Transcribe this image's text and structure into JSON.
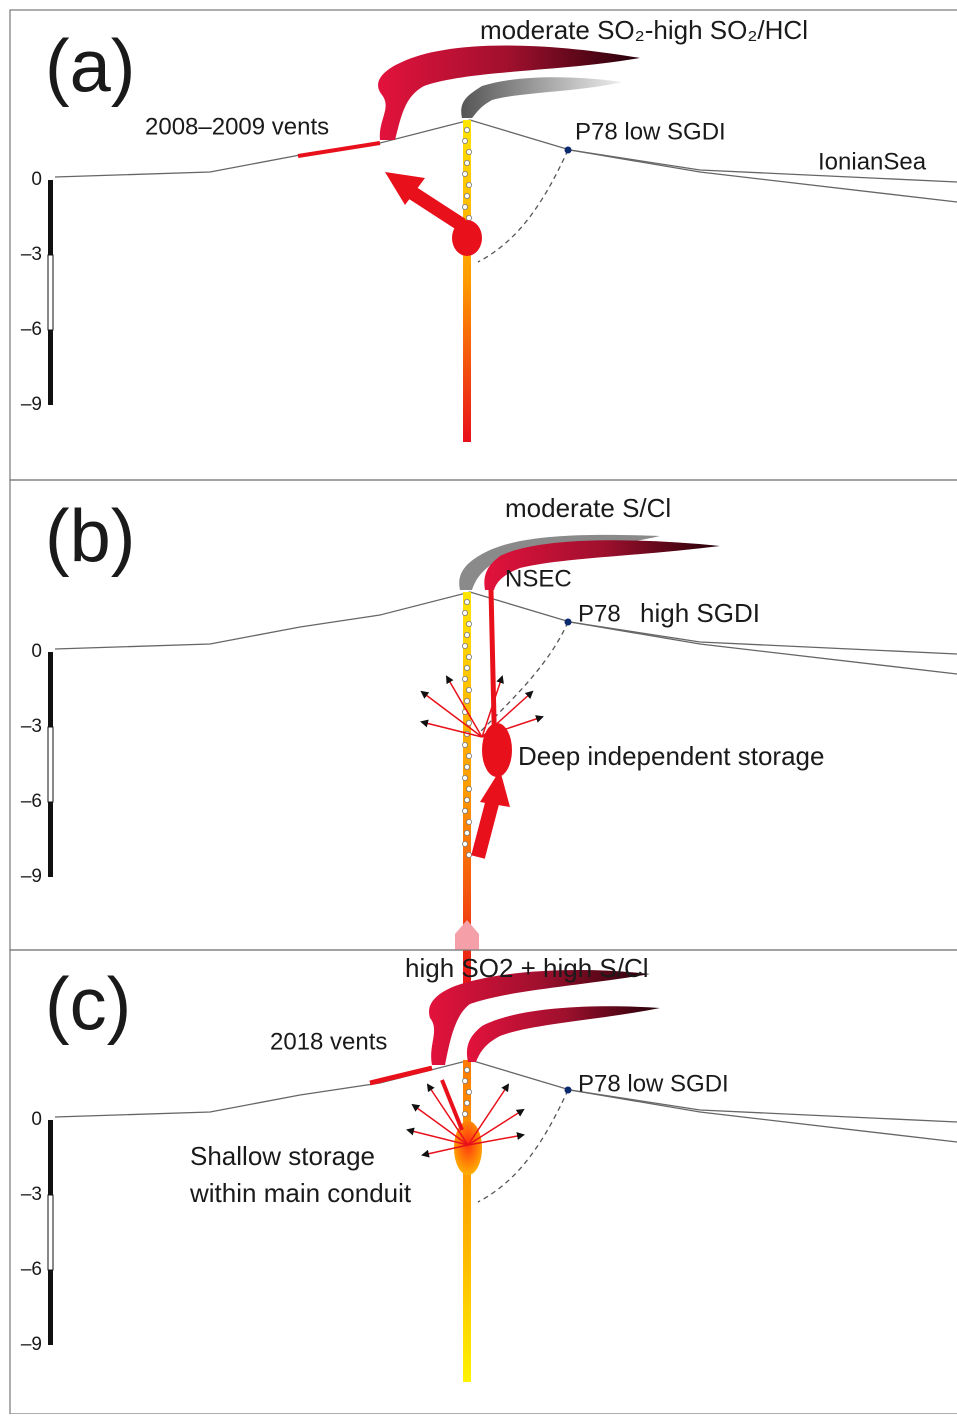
{
  "panels": [
    {
      "label": "(a)",
      "plume_label": "moderate SO₂-high SO₂/HCl",
      "vents_label": "2008–2009 vents",
      "station_label": "P78 low SGDI",
      "sea_label": "IonianSea",
      "depth_ticks": [
        "0",
        "–3",
        "–6",
        "–9"
      ]
    },
    {
      "label": "(b)",
      "plume_label": "moderate S/Cl",
      "vent_label": "NSEC",
      "station_label": "P78",
      "station_note": "high SGDI",
      "storage_label": "Deep independent storage",
      "depth_ticks": [
        "0",
        "–3",
        "–6",
        "–9"
      ]
    },
    {
      "label": "(c)",
      "plume_label": "high SO2 + high S/Cl",
      "vents_label": "2018 vents",
      "station_label": "P78 low SGDI",
      "storage_label": [
        "Shallow storage",
        "within main conduit"
      ],
      "depth_ticks": [
        "0",
        "–3",
        "–6",
        "–9"
      ]
    }
  ]
}
